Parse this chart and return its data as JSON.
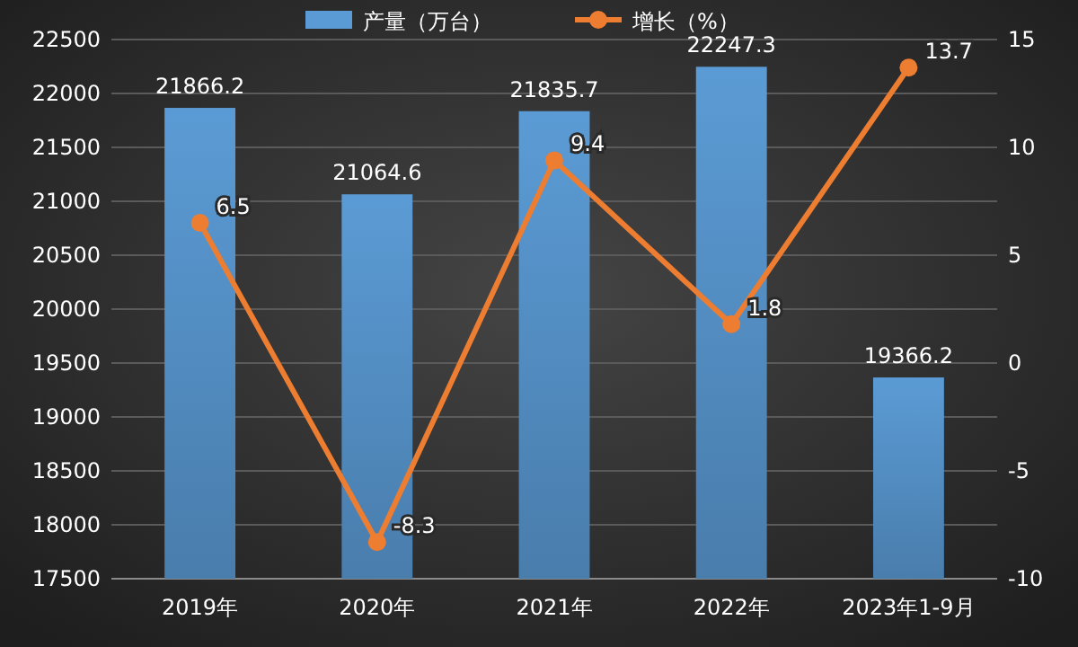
{
  "chart_data": {
    "type": "bar",
    "categories": [
      "2019年",
      "2020年",
      "2021年",
      "2022年",
      "2023年1-9月"
    ],
    "series": [
      {
        "name": "产量（万台）",
        "color": "#5b9bd5",
        "values": [
          21866.2,
          21064.6,
          21835.7,
          22247.3,
          19366.2
        ]
      },
      {
        "name": "增长（%）",
        "type": "line",
        "axis": "y2",
        "color": "#ed7d31",
        "values": [
          6.5,
          -8.3,
          9.4,
          1.8,
          13.7
        ]
      }
    ],
    "ylim": [
      17500,
      22500
    ],
    "yticks": [
      17500,
      18000,
      18500,
      19000,
      19500,
      20000,
      20500,
      21000,
      21500,
      22000,
      22500
    ],
    "y2lim": [
      -10,
      15
    ],
    "y2ticks": [
      -10,
      -5,
      0,
      5,
      10,
      15
    ],
    "grid": "y",
    "legend": "top",
    "data_labels": true,
    "marker": "circle",
    "line_style": "solid"
  }
}
